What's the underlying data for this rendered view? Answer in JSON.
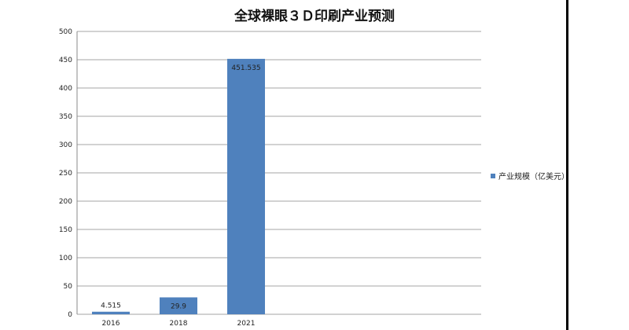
{
  "chart_data": {
    "type": "bar",
    "title": "全球裸眼３Ｄ印刷产业预测",
    "categories": [
      "2016",
      "2018",
      "2021"
    ],
    "series": [
      {
        "name": "产业规模（亿美元）",
        "values": [
          4.515,
          29.9,
          451.535
        ],
        "labels": [
          "4.515",
          "29.9",
          "451.535"
        ]
      }
    ],
    "ylim": [
      0,
      500
    ],
    "yticks": [
      0,
      50,
      100,
      150,
      200,
      250,
      300,
      350,
      400,
      450,
      500
    ],
    "grid": true,
    "legend": "right",
    "colors": {
      "bar": "#4f81bd",
      "grid": "#a6a6a6"
    }
  }
}
